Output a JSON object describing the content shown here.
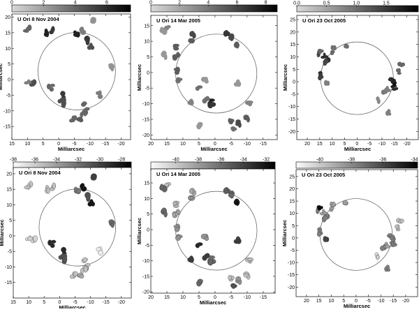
{
  "axis_label": "Milliarcsec",
  "epochs": [
    {
      "title": "U Ori  8 Nov 2004",
      "spots": [
        {
          "x": 3.5,
          "y": 15,
          "flux": 6,
          "vel": -36
        },
        {
          "x": 2.5,
          "y": 15.6,
          "flux": 5,
          "vel": -36
        },
        {
          "x": -5.5,
          "y": 15,
          "flux": 6,
          "vel": -33
        },
        {
          "x": -6,
          "y": 14.5,
          "flux": 6,
          "vel": -33
        },
        {
          "x": -9.5,
          "y": 12.5,
          "flux": 5,
          "vel": -31
        },
        {
          "x": -10.5,
          "y": 10.5,
          "flux": 4,
          "vel": -28
        },
        {
          "x": 10,
          "y": 16,
          "flux": 3,
          "vel": -36
        },
        {
          "x": 8.5,
          "y": -1.5,
          "flux": 4,
          "vel": -37
        },
        {
          "x": 10,
          "y": -0.5,
          "flux": 2,
          "vel": -37
        },
        {
          "x": 2.5,
          "y": -2.5,
          "flux": 3,
          "vel": -29
        },
        {
          "x": -1,
          "y": -5,
          "flux": 5,
          "vel": -29
        },
        {
          "x": -1,
          "y": -7,
          "flux": 4,
          "vel": -31
        },
        {
          "x": -2,
          "y": -8,
          "flux": 4,
          "vel": -31
        },
        {
          "x": -8.5,
          "y": -8,
          "flux": 3,
          "vel": -36
        },
        {
          "x": -9,
          "y": -10,
          "flux": 3,
          "vel": -36
        },
        {
          "x": -8,
          "y": -11,
          "flux": 3,
          "vel": -36
        },
        {
          "x": -6.5,
          "y": -12.5,
          "flux": 3.5,
          "vel": -35
        },
        {
          "x": -4.5,
          "y": -12.5,
          "flux": 3,
          "vel": -36
        },
        {
          "x": -13,
          "y": -5,
          "flux": 2,
          "vel": -38
        },
        {
          "x": -16.5,
          "y": 4,
          "flux": 1,
          "vel": -32
        },
        {
          "x": -7.5,
          "y": 15.7,
          "flux": 2,
          "vel": -28
        },
        {
          "x": -10.5,
          "y": 19,
          "flux": 1,
          "vel": -30
        }
      ]
    },
    {
      "title": "U Ori 14 Mar 2005",
      "spots": [
        {
          "x": 12.5,
          "y": 8.2,
          "flux": 4,
          "vel": -39.5
        },
        {
          "x": 12,
          "y": 5.5,
          "flux": 4,
          "vel": -39
        },
        {
          "x": 12.3,
          "y": 4.3,
          "flux": 4,
          "vel": -39
        },
        {
          "x": 12,
          "y": 0.5,
          "flux": 4,
          "vel": -38
        },
        {
          "x": 11.5,
          "y": -2.3,
          "flux": 3,
          "vel": -38
        },
        {
          "x": 7,
          "y": 12,
          "flux": 5,
          "vel": -39
        },
        {
          "x": 7,
          "y": 10.5,
          "flux": 4,
          "vel": -38
        },
        {
          "x": -3.5,
          "y": 12.3,
          "flux": 6,
          "vel": -35.5
        },
        {
          "x": -5,
          "y": 11.3,
          "flux": 5,
          "vel": -36
        },
        {
          "x": -6.5,
          "y": 9,
          "flux": 4,
          "vel": -32
        },
        {
          "x": 1.5,
          "y": -9.5,
          "flux": 7,
          "vel": -36.5
        },
        {
          "x": 1,
          "y": -10.5,
          "flux": 6,
          "vel": -36
        },
        {
          "x": 3,
          "y": -8.5,
          "flux": 3,
          "vel": -34
        },
        {
          "x": 5,
          "y": -5,
          "flux": 3,
          "vel": -33
        },
        {
          "x": 7,
          "y": -9.5,
          "flux": 2,
          "vel": -34
        },
        {
          "x": 15,
          "y": 14,
          "flux": 2,
          "vel": -40
        },
        {
          "x": 16,
          "y": 13.5,
          "flux": 1,
          "vel": -36
        },
        {
          "x": 15.5,
          "y": 5.5,
          "flux": 1,
          "vel": -36
        },
        {
          "x": -5,
          "y": -15.5,
          "flux": 4,
          "vel": -40
        },
        {
          "x": -7.5,
          "y": -16.2,
          "flux": 5,
          "vel": -38
        },
        {
          "x": -10,
          "y": -14.5,
          "flux": 4,
          "vel": -40
        },
        {
          "x": -6,
          "y": -17.5,
          "flux": 3,
          "vel": -35
        },
        {
          "x": -10.5,
          "y": -9.5,
          "flux": 2,
          "vel": -40
        },
        {
          "x": -7,
          "y": -3.5,
          "flux": 1,
          "vel": -34
        },
        {
          "x": 3,
          "y": -2.5,
          "flux": 1,
          "vel": -38
        },
        {
          "x": 5,
          "y": -17,
          "flux": 1,
          "vel": -36
        }
      ]
    },
    {
      "title": "U Ori 23 Oct 2005",
      "spots": [
        {
          "x": 15.5,
          "y": 11.5,
          "flux": 1.2,
          "vel": -38
        },
        {
          "x": 13,
          "y": 10.5,
          "flux": 1.5,
          "vel": -39
        },
        {
          "x": 12,
          "y": 9,
          "flux": 1.5,
          "vel": -38
        },
        {
          "x": 12.5,
          "y": 7.5,
          "flux": 1.2,
          "vel": -38
        },
        {
          "x": 15,
          "y": 3,
          "flux": 1.5,
          "vel": -38
        },
        {
          "x": 14.7,
          "y": 2,
          "flux": 1.3,
          "vel": -38
        },
        {
          "x": 14.5,
          "y": 12.5,
          "flux": 0.8,
          "vel": -34
        },
        {
          "x": 9.5,
          "y": 14,
          "flux": 0.7,
          "vel": -39
        },
        {
          "x": 4,
          "y": 14.5,
          "flux": 0.7,
          "vel": -39
        },
        {
          "x": 10,
          "y": 12,
          "flux": 0.8,
          "vel": -39
        },
        {
          "x": -14,
          "y": 1.5,
          "flux": 1.5,
          "vel": -38
        },
        {
          "x": -14.5,
          "y": 0,
          "flux": 1.6,
          "vel": -38
        },
        {
          "x": -15,
          "y": -1.5,
          "flux": 1.8,
          "vel": -38
        },
        {
          "x": -15.3,
          "y": -3,
          "flux": 1.5,
          "vel": -38
        },
        {
          "x": -17,
          "y": 4,
          "flux": 0.8,
          "vel": -40
        },
        {
          "x": -17.8,
          "y": 6.5,
          "flux": 0.8,
          "vel": -40
        },
        {
          "x": -11,
          "y": -4,
          "flux": 0.6,
          "vel": -38
        },
        {
          "x": -12,
          "y": -3,
          "flux": 0.5,
          "vel": -39
        },
        {
          "x": -12.5,
          "y": -12.5,
          "flux": 0.5,
          "vel": -38
        },
        {
          "x": -8.5,
          "y": -7.5,
          "flux": 0.4,
          "vel": -41
        },
        {
          "x": 12,
          "y": 0,
          "flux": 0.5,
          "vel": -36
        }
      ]
    }
  ],
  "panels": [
    {
      "epoch": 0,
      "color_by": "flux",
      "xlim": [
        15,
        -23
      ],
      "ylim": [
        -19.2,
        21
      ],
      "xticks": [
        15,
        10,
        5,
        0,
        -5,
        -10,
        -15,
        -20
      ],
      "yticks": [
        20,
        15,
        10,
        5,
        0,
        -5,
        -10,
        -15
      ],
      "colorbar": {
        "min": 0,
        "max": 7.5,
        "ticks": [
          "0",
          "2",
          "4",
          "6"
        ]
      },
      "circle": {
        "x": -5.75,
        "y": 2.7,
        "r": 12.4
      }
    },
    {
      "epoch": 1,
      "color_by": "flux",
      "xlim": [
        20,
        -19.4
      ],
      "ylim": [
        -21.5,
        18.3
      ],
      "xticks": [
        20,
        15,
        10,
        5,
        0,
        -5,
        -10,
        -15
      ],
      "yticks": [
        15,
        10,
        5,
        0,
        -5,
        -10,
        -15,
        -20
      ],
      "colorbar": {
        "min": 0,
        "max": 8.8,
        "ticks": [
          "0",
          "2",
          "4",
          "6",
          "8"
        ]
      },
      "circle": {
        "x": -0.4,
        "y": -0.35,
        "r": 12.65
      }
    },
    {
      "epoch": 2,
      "color_by": "flux",
      "xlim": [
        24.2,
        -24.6
      ],
      "ylim": [
        -23.3,
        26.7
      ],
      "xticks": [
        20,
        15,
        10,
        5,
        0,
        -5,
        -10,
        -15,
        -20
      ],
      "yticks": [
        25,
        20,
        15,
        10,
        5,
        0,
        -5,
        -10,
        -15,
        -20
      ],
      "colorbar": {
        "min": 0,
        "max": 2.04,
        "ticks": [
          "0.0",
          "0.5",
          "1.0",
          "1.5"
        ]
      },
      "circle": {
        "x": 0,
        "y": 1.4,
        "r": 14.6
      }
    },
    {
      "epoch": 0,
      "color_by": "velocity",
      "xlim": [
        15,
        -23.2
      ],
      "ylim": [
        -20,
        22
      ],
      "xticks": [
        15,
        10,
        5,
        0,
        -5,
        -10,
        -15,
        -20
      ],
      "yticks": [
        20,
        15,
        10,
        5,
        0,
        -5,
        -10,
        -15
      ],
      "colorbar": {
        "min": -38,
        "max": -27.1,
        "ticks": [
          "-38",
          "-36",
          "-34",
          "-32",
          "-30",
          "-28"
        ]
      },
      "circle": {
        "x": -5.75,
        "y": 2.7,
        "r": 12.4
      }
    },
    {
      "epoch": 1,
      "color_by": "velocity",
      "xlim": [
        20,
        -18.7
      ],
      "ylim": [
        -20.4,
        19.5
      ],
      "xticks": [
        20,
        15,
        10,
        5,
        0,
        -5,
        -10,
        -15
      ],
      "yticks": [
        15,
        10,
        5,
        0,
        -5,
        -10,
        -15,
        -20
      ],
      "colorbar": {
        "min": -42.2,
        "max": -31.2,
        "ticks": [
          "-40",
          "-38",
          "-36",
          "-34",
          "-32"
        ]
      },
      "circle": {
        "x": -0.4,
        "y": -0.35,
        "r": 12.65
      }
    },
    {
      "epoch": 2,
      "color_by": "velocity",
      "xlim": [
        24.2,
        -24.8
      ],
      "ylim": [
        -23.9,
        27.8
      ],
      "xticks": [
        20,
        15,
        10,
        5,
        0,
        -5,
        -10,
        -15,
        -20
      ],
      "yticks": [
        25,
        20,
        15,
        10,
        5,
        0,
        -5,
        -10,
        -15,
        -20
      ],
      "colorbar": {
        "min": -41.5,
        "max": -33.8,
        "ticks": [
          "-40",
          "-38",
          "-36",
          "-34"
        ]
      },
      "circle": {
        "x": 0,
        "y": 1.4,
        "r": 14.6
      }
    }
  ]
}
